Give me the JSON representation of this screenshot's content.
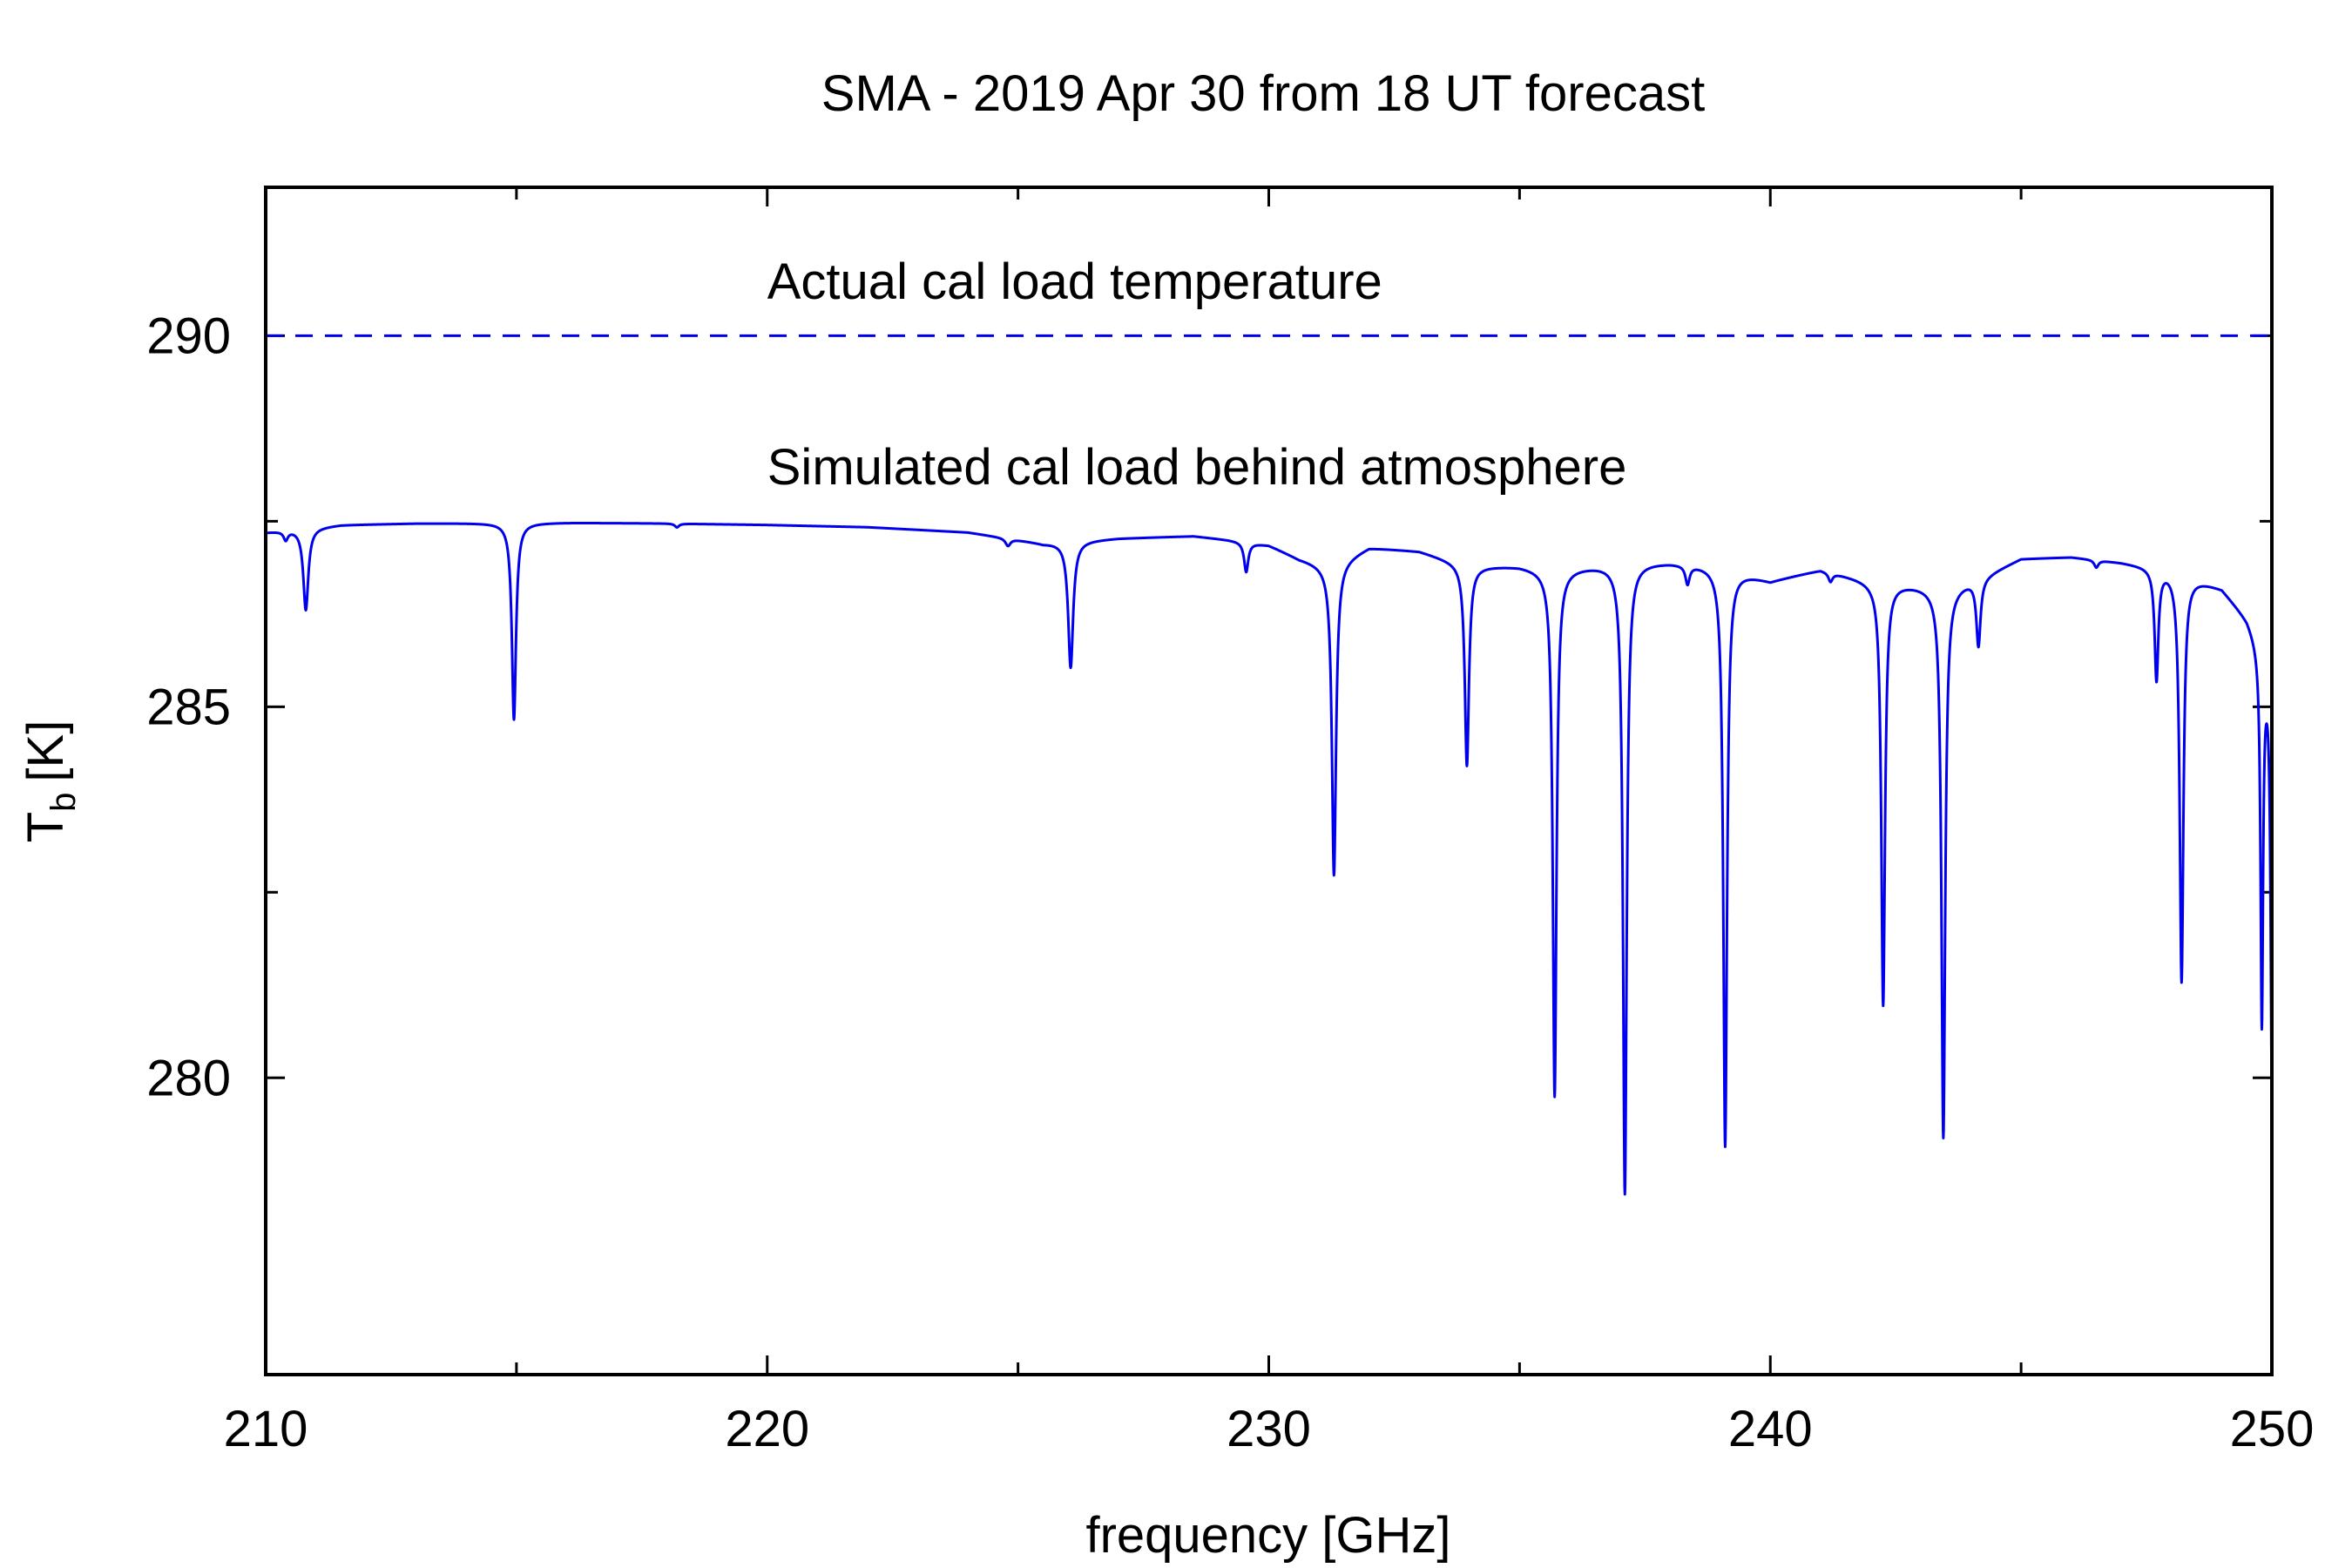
{
  "chart_data": {
    "type": "line",
    "title": "SMA - 2019 Apr 30 from 18 UT forecast",
    "xlabel": "frequency [GHz]",
    "ylabel_main": "T",
    "ylabel_sub": "b",
    "ylabel_unit": "[K]",
    "xlim": [
      210,
      250
    ],
    "ylim": [
      276,
      292
    ],
    "xticks": [
      210,
      220,
      230,
      240,
      250
    ],
    "xtick_labels": [
      "210",
      "220",
      "230",
      "240",
      "250"
    ],
    "x_minor_ticks": [
      215,
      225,
      235,
      245
    ],
    "yticks": [
      280,
      285,
      290
    ],
    "ytick_labels": [
      "280",
      "285",
      "290"
    ],
    "y_minor_ticks": [
      282.5,
      287.5
    ],
    "grid": false,
    "color": "#0000ee",
    "annotations": [
      {
        "text": "Actual cal load temperature",
        "x": 220,
        "y": 290.5
      },
      {
        "text": "Simulated cal load behind atmosphere",
        "x": 220,
        "y": 288.0
      }
    ],
    "series": [
      {
        "label": "Actual cal load temperature",
        "style": "dashed",
        "x": [
          210,
          250
        ],
        "y": [
          290.0,
          290.0
        ]
      },
      {
        "label": "Simulated cal load behind atmosphere",
        "style": "solid",
        "baseline": [
          [
            210.0,
            287.35
          ],
          [
            211.5,
            287.45
          ],
          [
            213.0,
            287.47
          ],
          [
            216.0,
            287.48
          ],
          [
            218.0,
            287.47
          ],
          [
            220.0,
            287.45
          ],
          [
            222.0,
            287.42
          ],
          [
            224.0,
            287.35
          ],
          [
            225.5,
            287.2
          ],
          [
            227.0,
            287.27
          ],
          [
            228.5,
            287.3
          ],
          [
            229.2,
            287.25
          ],
          [
            230.0,
            287.18
          ],
          [
            230.6,
            287.0
          ],
          [
            231.2,
            286.9
          ],
          [
            232.0,
            287.15
          ],
          [
            233.0,
            287.1
          ],
          [
            234.0,
            286.9
          ],
          [
            235.0,
            286.9
          ],
          [
            235.6,
            286.85
          ],
          [
            236.4,
            286.9
          ],
          [
            237.2,
            286.95
          ],
          [
            238.0,
            286.95
          ],
          [
            239.0,
            286.9
          ],
          [
            240.0,
            286.7
          ],
          [
            241.0,
            286.85
          ],
          [
            242.0,
            286.7
          ],
          [
            242.8,
            286.65
          ],
          [
            243.5,
            286.6
          ],
          [
            244.2,
            286.75
          ],
          [
            245.0,
            287.0
          ],
          [
            246.0,
            287.02
          ],
          [
            247.0,
            286.95
          ],
          [
            248.0,
            286.85
          ],
          [
            249.0,
            286.6
          ],
          [
            249.5,
            286.2
          ],
          [
            250.0,
            285.5
          ]
        ],
        "lines": [
          {
            "x0": 210.4,
            "depth": 0.12,
            "width": 0.05
          },
          {
            "x0": 210.8,
            "depth": 1.1,
            "width": 0.06
          },
          {
            "x0": 214.95,
            "depth": 2.65,
            "width": 0.05
          },
          {
            "x0": 218.2,
            "depth": 0.05,
            "width": 0.05
          },
          {
            "x0": 224.8,
            "depth": 0.1,
            "width": 0.06
          },
          {
            "x0": 226.05,
            "depth": 1.7,
            "width": 0.06
          },
          {
            "x0": 229.55,
            "depth": 0.4,
            "width": 0.05
          },
          {
            "x0": 231.3,
            "depth": 4.2,
            "width": 0.05
          },
          {
            "x0": 233.95,
            "depth": 2.7,
            "width": 0.05
          },
          {
            "x0": 235.7,
            "depth": 7.1,
            "width": 0.045
          },
          {
            "x0": 237.1,
            "depth": 8.5,
            "width": 0.045
          },
          {
            "x0": 238.35,
            "depth": 0.25,
            "width": 0.05
          },
          {
            "x0": 239.1,
            "depth": 7.8,
            "width": 0.045
          },
          {
            "x0": 241.2,
            "depth": 0.12,
            "width": 0.05
          },
          {
            "x0": 242.25,
            "depth": 5.7,
            "width": 0.045
          },
          {
            "x0": 243.45,
            "depth": 7.4,
            "width": 0.045
          },
          {
            "x0": 244.15,
            "depth": 0.9,
            "width": 0.05
          },
          {
            "x0": 246.5,
            "depth": 0.1,
            "width": 0.05
          },
          {
            "x0": 247.7,
            "depth": 1.5,
            "width": 0.045
          },
          {
            "x0": 248.2,
            "depth": 5.5,
            "width": 0.045
          },
          {
            "x0": 249.8,
            "depth": 5.0,
            "width": 0.03
          },
          {
            "x0": 250.0,
            "depth": 5.5,
            "width": 0.03
          }
        ]
      }
    ]
  }
}
